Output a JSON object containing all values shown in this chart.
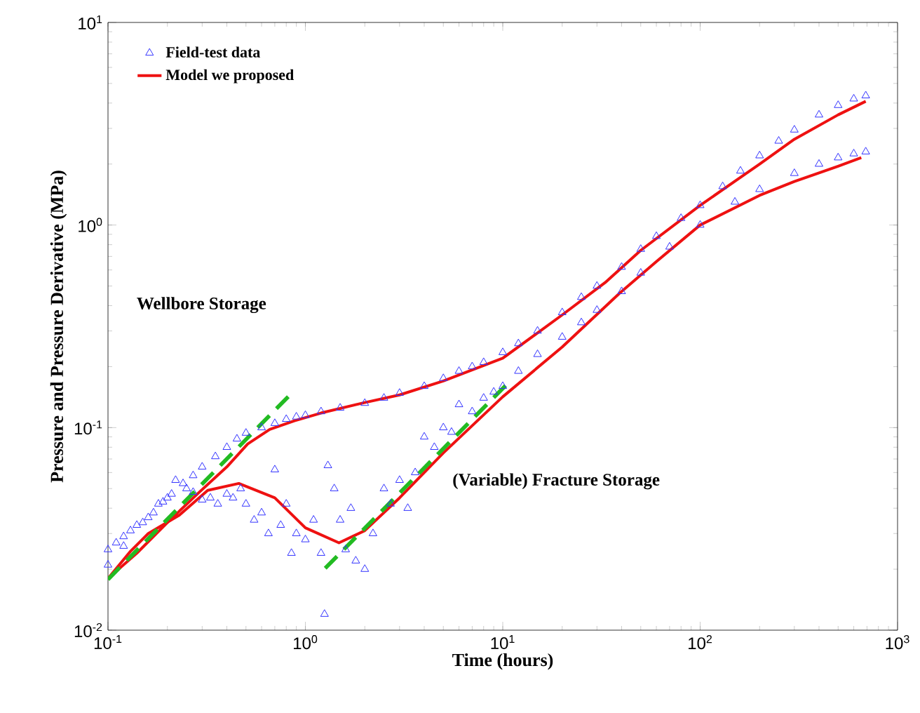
{
  "chart_data": {
    "type": "scatter",
    "xlabel": "Time (hours)",
    "ylabel": "Pressure and Pressure Derivative (MPa)",
    "log": "xy",
    "xlim": [
      0.1,
      1000
    ],
    "ylim": [
      0.01,
      10
    ],
    "xticks": [
      {
        "value": 0.1,
        "label": "10$^{-1}$"
      },
      {
        "value": 1,
        "label": "10$^{0}$"
      },
      {
        "value": 10,
        "label": "10$^{1}$"
      },
      {
        "value": 100,
        "label": "10$^{2}$"
      },
      {
        "value": 1000,
        "label": "10$^{3}$"
      }
    ],
    "yticks": [
      {
        "value": 0.01,
        "label": "10$^{-2}$"
      },
      {
        "value": 0.1,
        "label": "10$^{-1}$"
      },
      {
        "value": 1,
        "label": "10$^{0}$"
      },
      {
        "value": 10,
        "label": "10$^{1}$"
      }
    ],
    "grid": false,
    "legend": "top left",
    "annotations": [
      "Wellbore Storage",
      "(Variable) Fracture Storage"
    ],
    "series": [
      {
        "name": "Field-test data",
        "marker": "triangle",
        "color": "#3333ff",
        "x": [
          0.1,
          0.11,
          0.12,
          0.13,
          0.15,
          0.17,
          0.19,
          0.21,
          0.24,
          0.27,
          0.3,
          0.35,
          0.4,
          0.45,
          0.5,
          0.6,
          0.7,
          0.8,
          0.9,
          1.0,
          1.2,
          1.5,
          2,
          2.5,
          3,
          4,
          5,
          6,
          7,
          8,
          10,
          12,
          15,
          20,
          25,
          30,
          40,
          50,
          60,
          80,
          100,
          130,
          160,
          200,
          250,
          300,
          400,
          500,
          600,
          690
        ],
        "values": [
          0.025,
          0.027,
          0.029,
          0.031,
          0.034,
          0.038,
          0.043,
          0.047,
          0.053,
          0.058,
          0.064,
          0.072,
          0.08,
          0.088,
          0.094,
          0.1,
          0.105,
          0.11,
          0.113,
          0.115,
          0.12,
          0.125,
          0.132,
          0.14,
          0.148,
          0.16,
          0.175,
          0.19,
          0.2,
          0.21,
          0.235,
          0.26,
          0.3,
          0.37,
          0.44,
          0.5,
          0.62,
          0.76,
          0.88,
          1.08,
          1.25,
          1.55,
          1.85,
          2.2,
          2.6,
          2.95,
          3.5,
          3.9,
          4.2,
          4.35
        ]
      },
      {
        "marker": "triangle",
        "color": "#3333ff",
        "x": [
          0.1,
          0.12,
          0.14,
          0.16,
          0.18,
          0.2,
          0.22,
          0.25,
          0.27,
          0.3,
          0.33,
          0.36,
          0.4,
          0.43,
          0.47,
          0.5,
          0.55,
          0.6,
          0.65,
          0.7,
          0.75,
          0.8,
          0.85,
          0.9,
          1.0,
          1.1,
          1.2,
          1.25,
          1.3,
          1.4,
          1.5,
          1.6,
          1.7,
          1.8,
          2.0,
          2.2,
          2.5,
          2.7,
          3.0,
          3.3,
          3.6,
          4.0,
          4.5,
          5.0,
          5.5,
          6,
          7,
          8,
          9,
          10,
          12,
          15,
          20,
          25,
          30,
          40,
          50,
          70,
          100,
          150,
          200,
          300,
          400,
          500,
          600,
          690
        ],
        "values": [
          0.021,
          0.026,
          0.033,
          0.036,
          0.042,
          0.045,
          0.055,
          0.05,
          0.048,
          0.044,
          0.045,
          0.042,
          0.047,
          0.045,
          0.05,
          0.042,
          0.035,
          0.038,
          0.03,
          0.062,
          0.033,
          0.042,
          0.024,
          0.03,
          0.028,
          0.035,
          0.024,
          0.012,
          0.065,
          0.05,
          0.035,
          0.025,
          0.04,
          0.022,
          0.02,
          0.03,
          0.05,
          0.042,
          0.055,
          0.04,
          0.06,
          0.09,
          0.08,
          0.1,
          0.095,
          0.13,
          0.12,
          0.14,
          0.15,
          0.16,
          0.19,
          0.23,
          0.28,
          0.33,
          0.38,
          0.47,
          0.58,
          0.78,
          1.0,
          1.3,
          1.5,
          1.8,
          2.0,
          2.15,
          2.25,
          2.3
        ]
      },
      {
        "name": "Model we proposed",
        "type": "line",
        "marker": "none",
        "line_style": "solid",
        "color": "#ee1111",
        "x": [
          0.1,
          0.14,
          0.2,
          0.29,
          0.4,
          0.51,
          0.66,
          0.88,
          1.2,
          2,
          3,
          5,
          10,
          20,
          33,
          50,
          100,
          200,
          300,
          500,
          690
        ],
        "values": [
          0.018,
          0.024,
          0.034,
          0.048,
          0.064,
          0.083,
          0.098,
          0.108,
          0.118,
          0.133,
          0.145,
          0.17,
          0.22,
          0.36,
          0.52,
          0.75,
          1.25,
          2.0,
          2.65,
          3.5,
          4.08
        ]
      },
      {
        "type": "line",
        "marker": "none",
        "line_style": "solid",
        "color": "#ee1111",
        "x": [
          0.1,
          0.13,
          0.16,
          0.23,
          0.32,
          0.46,
          0.7,
          1.0,
          1.48,
          2,
          3,
          5,
          10,
          20,
          39,
          60,
          100,
          200,
          300,
          500,
          655
        ],
        "values": [
          0.018,
          0.0245,
          0.03,
          0.037,
          0.049,
          0.053,
          0.045,
          0.032,
          0.027,
          0.031,
          0.045,
          0.075,
          0.142,
          0.25,
          0.46,
          0.66,
          1.0,
          1.4,
          1.64,
          1.95,
          2.15
        ]
      },
      {
        "type": "line",
        "marker": "none",
        "line_style": "dashed",
        "color": "#22bb22",
        "x": [
          0.1,
          0.835
        ],
        "values": [
          0.0178,
          0.145
        ]
      },
      {
        "type": "line",
        "marker": "none",
        "line_style": "dashed",
        "color": "#22bb22",
        "x": [
          1.26,
          10.7
        ],
        "values": [
          0.0202,
          0.167
        ]
      }
    ]
  }
}
